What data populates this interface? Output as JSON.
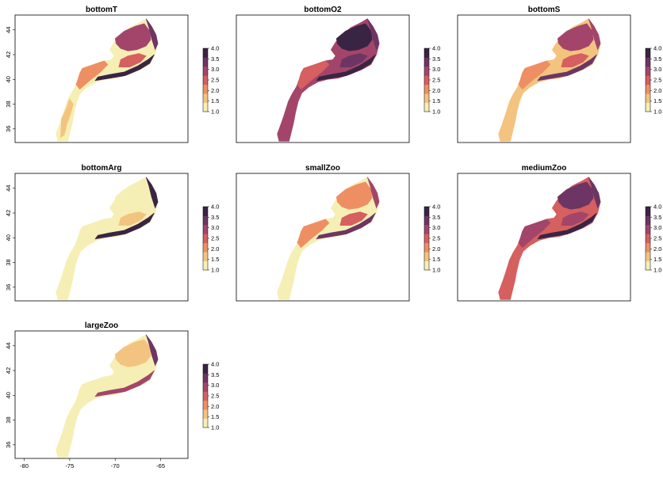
{
  "panels": [
    {
      "title": "bottomT",
      "pattern": "mixed"
    },
    {
      "title": "bottomO2",
      "pattern": "dark"
    },
    {
      "title": "bottomS",
      "pattern": "mixed-light"
    },
    {
      "title": "bottomArg",
      "pattern": "light"
    },
    {
      "title": "smallZoo",
      "pattern": "mid"
    },
    {
      "title": "mediumZoo",
      "pattern": "dark-mid"
    },
    {
      "title": "largeZoo",
      "pattern": "light-mid"
    }
  ],
  "legend": {
    "min": 1.0,
    "max": 4.0,
    "ticks": [
      "1.0",
      "1.5",
      "2.0",
      "2.5",
      "3.0",
      "3.5",
      "4.0"
    ],
    "palette": [
      "#f5efb5",
      "#f3c47f",
      "#ee8f63",
      "#d65f5f",
      "#a3456a",
      "#6d3564",
      "#3a2443"
    ]
  },
  "axes": {
    "xticks": [
      "-80",
      "-75",
      "-70",
      "-65"
    ],
    "yticks": [
      "36",
      "38",
      "40",
      "42",
      "44"
    ]
  }
}
